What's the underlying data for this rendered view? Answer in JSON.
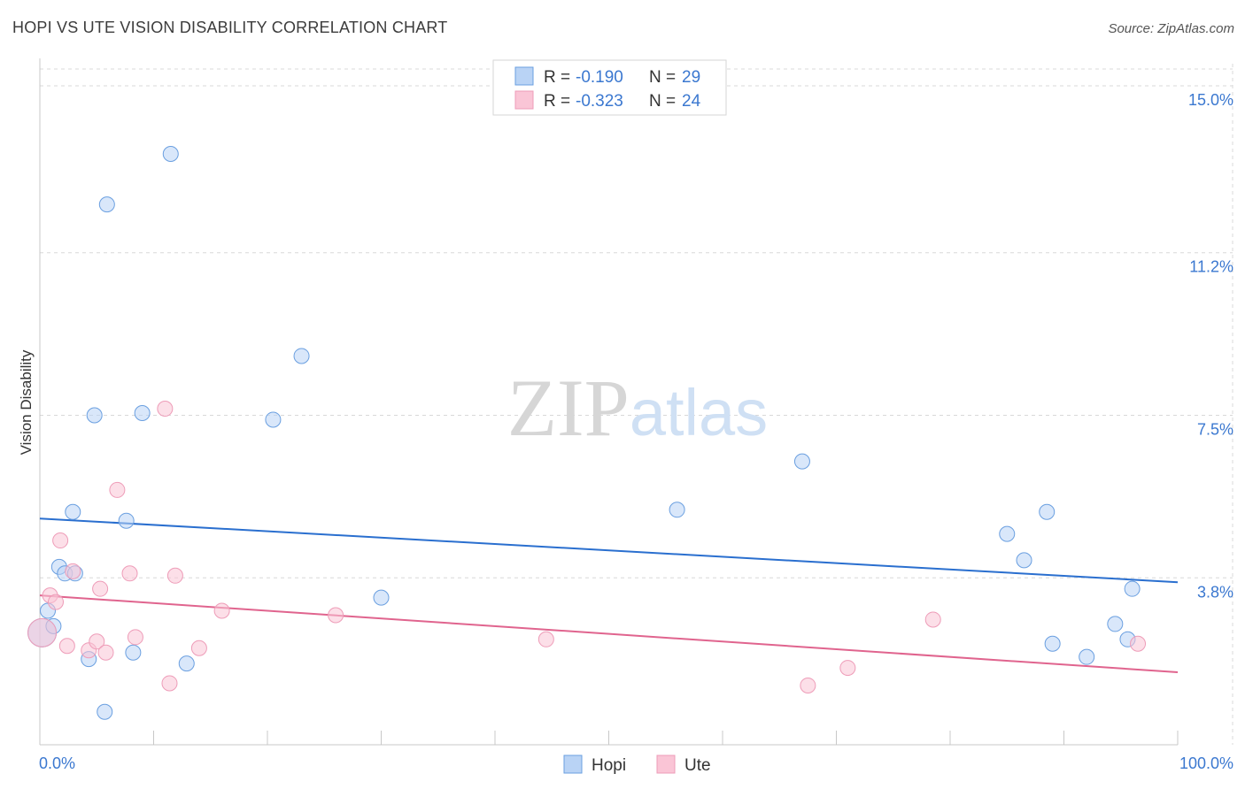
{
  "chart_data": {
    "type": "scatter",
    "title": "HOPI VS UTE VISION DISABILITY CORRELATION CHART",
    "source": "Source: ZipAtlas.com",
    "ylabel": "Vision Disability",
    "xlabel": "",
    "xlim": [
      0,
      100
    ],
    "ylim": [
      0,
      16.0
    ],
    "x_tick_labels": [
      "0.0%",
      "100.0%"
    ],
    "y_ticks": [
      {
        "value": 3.8,
        "label": "3.8%"
      },
      {
        "value": 7.5,
        "label": "7.5%"
      },
      {
        "value": 11.2,
        "label": "11.2%"
      },
      {
        "value": 15.0,
        "label": "15.0%"
      }
    ],
    "watermark": "ZIPatlas",
    "legend_stats": [
      {
        "series": "Hopi",
        "r_label": "R =",
        "r_value": "-0.190",
        "n_label": "N =",
        "n_value": "29"
      },
      {
        "series": "Ute",
        "r_label": "R =",
        "r_value": "-0.323",
        "n_label": "N =",
        "n_value": "24"
      }
    ],
    "series": [
      {
        "name": "Hopi",
        "color": "#6a9fe0",
        "fill": "#b9d3f5",
        "line_color": "#2a6fcf",
        "trend": {
          "x": [
            0,
            100
          ],
          "y": [
            5.15,
            3.7
          ]
        },
        "points": [
          {
            "x": 0.2,
            "y": 2.55,
            "big": true
          },
          {
            "x": 0.7,
            "y": 3.05
          },
          {
            "x": 1.2,
            "y": 2.7
          },
          {
            "x": 1.7,
            "y": 4.05
          },
          {
            "x": 2.2,
            "y": 3.9
          },
          {
            "x": 2.9,
            "y": 5.3
          },
          {
            "x": 3.1,
            "y": 3.9
          },
          {
            "x": 4.3,
            "y": 1.95
          },
          {
            "x": 4.8,
            "y": 7.5
          },
          {
            "x": 5.7,
            "y": 0.75
          },
          {
            "x": 5.9,
            "y": 12.3
          },
          {
            "x": 7.6,
            "y": 5.1
          },
          {
            "x": 8.2,
            "y": 2.1
          },
          {
            "x": 9.0,
            "y": 7.55
          },
          {
            "x": 11.5,
            "y": 13.45
          },
          {
            "x": 12.9,
            "y": 1.85
          },
          {
            "x": 20.5,
            "y": 7.4
          },
          {
            "x": 23.0,
            "y": 8.85
          },
          {
            "x": 30.0,
            "y": 3.35
          },
          {
            "x": 56.0,
            "y": 5.35
          },
          {
            "x": 67.0,
            "y": 6.45
          },
          {
            "x": 85.0,
            "y": 4.8
          },
          {
            "x": 86.5,
            "y": 4.2
          },
          {
            "x": 88.5,
            "y": 5.3
          },
          {
            "x": 89.0,
            "y": 2.3
          },
          {
            "x": 92.0,
            "y": 2.0
          },
          {
            "x": 94.5,
            "y": 2.75
          },
          {
            "x": 95.6,
            "y": 2.4
          },
          {
            "x": 96.0,
            "y": 3.55
          }
        ]
      },
      {
        "name": "Ute",
        "color": "#ee9cb8",
        "fill": "#fac5d6",
        "line_color": "#e0648e",
        "trend": {
          "x": [
            0,
            100
          ],
          "y": [
            3.4,
            1.65
          ]
        },
        "points": [
          {
            "x": 0.2,
            "y": 2.55,
            "big": true
          },
          {
            "x": 0.9,
            "y": 3.4
          },
          {
            "x": 1.4,
            "y": 3.25
          },
          {
            "x": 1.8,
            "y": 4.65
          },
          {
            "x": 2.4,
            "y": 2.25
          },
          {
            "x": 2.9,
            "y": 3.95
          },
          {
            "x": 4.3,
            "y": 2.15
          },
          {
            "x": 5.0,
            "y": 2.35
          },
          {
            "x": 5.3,
            "y": 3.55
          },
          {
            "x": 5.8,
            "y": 2.1
          },
          {
            "x": 6.8,
            "y": 5.8
          },
          {
            "x": 7.9,
            "y": 3.9
          },
          {
            "x": 8.4,
            "y": 2.45
          },
          {
            "x": 11.0,
            "y": 7.65
          },
          {
            "x": 11.4,
            "y": 1.4
          },
          {
            "x": 11.9,
            "y": 3.85
          },
          {
            "x": 14.0,
            "y": 2.2
          },
          {
            "x": 16.0,
            "y": 3.05
          },
          {
            "x": 26.0,
            "y": 2.95
          },
          {
            "x": 44.5,
            "y": 2.4
          },
          {
            "x": 67.5,
            "y": 1.35
          },
          {
            "x": 71.0,
            "y": 1.75
          },
          {
            "x": 78.5,
            "y": 2.85
          },
          {
            "x": 96.5,
            "y": 2.3
          }
        ]
      }
    ]
  }
}
